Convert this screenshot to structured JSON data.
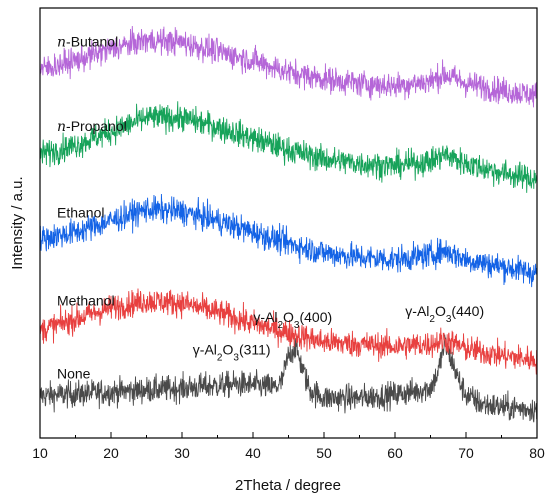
{
  "chart_data": {
    "type": "line",
    "xlabel": "2Theta / degree",
    "ylabel": "Intensity / a.u.",
    "xlim": [
      10,
      80
    ],
    "xticks": [
      "10",
      "20",
      "30",
      "40",
      "50",
      "60",
      "70",
      "80"
    ],
    "ytick_labels": false,
    "grid": false,
    "legend": "none",
    "series": [
      {
        "name": "None",
        "italic_prefix": "",
        "rest": "None",
        "color": "#4a4a4a",
        "x": [
          10,
          15,
          20,
          25,
          30,
          35,
          38,
          40,
          42,
          43,
          44,
          45,
          46,
          47,
          48,
          50,
          55,
          60,
          63,
          65,
          66,
          67,
          68,
          69,
          70,
          72,
          75,
          80
        ],
        "y": [
          0.65,
          0.72,
          0.82,
          0.9,
          0.98,
          1.1,
          1.15,
          1.12,
          1.05,
          1.0,
          1.2,
          2.4,
          2.8,
          1.8,
          0.9,
          0.55,
          0.55,
          0.7,
          0.85,
          1.0,
          1.6,
          2.9,
          2.2,
          1.3,
          0.7,
          0.3,
          0.15,
          0.05
        ]
      },
      {
        "name": "Methanol",
        "italic_prefix": "",
        "rest": "Methanol",
        "color": "#e8403f",
        "x": [
          10,
          15,
          20,
          25,
          30,
          35,
          40,
          45,
          50,
          55,
          60,
          65,
          67,
          70,
          75,
          80
        ],
        "y": [
          3.5,
          4.0,
          4.5,
          4.8,
          4.7,
          4.3,
          3.8,
          3.4,
          3.0,
          2.9,
          2.8,
          2.9,
          3.1,
          2.7,
          2.4,
          2.2
        ]
      },
      {
        "name": "Ethanol",
        "italic_prefix": "",
        "rest": "Ethanol",
        "color": "#1463e6",
        "x": [
          10,
          15,
          20,
          25,
          30,
          35,
          40,
          45,
          50,
          55,
          60,
          65,
          67,
          70,
          75,
          80
        ],
        "y": [
          7.5,
          7.8,
          8.3,
          8.8,
          8.7,
          8.3,
          7.8,
          7.3,
          6.9,
          6.7,
          6.6,
          6.8,
          7.0,
          6.6,
          6.3,
          6.0
        ]
      },
      {
        "name": "n-Propanol",
        "italic_prefix": "n",
        "rest": "-Propanol",
        "color": "#17a35a",
        "x": [
          10,
          15,
          20,
          25,
          30,
          35,
          40,
          45,
          50,
          55,
          60,
          65,
          67,
          70,
          75,
          80
        ],
        "y": [
          11.2,
          11.6,
          12.2,
          12.8,
          12.8,
          12.4,
          11.9,
          11.4,
          11.0,
          10.8,
          10.7,
          10.9,
          11.2,
          10.8,
          10.4,
          10.1
        ]
      },
      {
        "name": "n-Butanol",
        "italic_prefix": "n",
        "rest": "-Butanol",
        "color": "#b566d8",
        "x": [
          10,
          15,
          20,
          25,
          30,
          35,
          40,
          45,
          50,
          55,
          60,
          65,
          67,
          70,
          75,
          80
        ],
        "y": [
          14.9,
          15.3,
          15.8,
          16.2,
          16.1,
          15.7,
          15.3,
          14.8,
          14.5,
          14.3,
          14.2,
          14.4,
          14.7,
          14.3,
          14.0,
          13.8
        ]
      }
    ],
    "annotations": [
      {
        "text_prefix": "γ-Al",
        "sub1": "2",
        "mid": "O",
        "sub2": "3",
        "suffix": "(311)",
        "x": 37
      },
      {
        "text_prefix": "γ-Al",
        "sub1": "2",
        "mid": "O",
        "sub2": "3",
        "suffix": "(400)",
        "x": 45.6
      },
      {
        "text_prefix": "γ-Al",
        "sub1": "2",
        "mid": "O",
        "sub2": "3",
        "suffix": "(440)",
        "x": 67
      }
    ]
  }
}
